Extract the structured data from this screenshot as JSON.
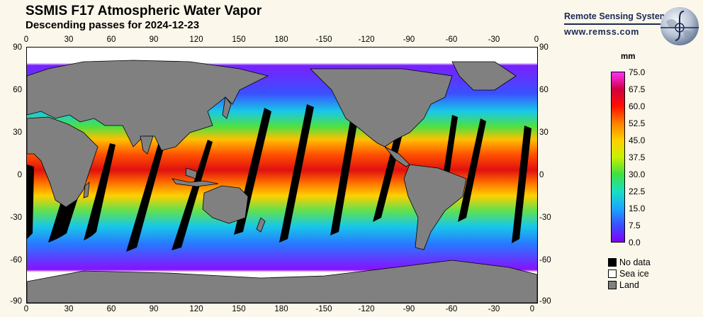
{
  "header": {
    "title": "SSMIS F17 Atmospheric Water Vapor",
    "subtitle": "Descending passes for 2024-12-23"
  },
  "brand": {
    "name": "Remote Sensing Systems",
    "url": "www.remss.com"
  },
  "axes": {
    "longitude_labels": [
      "0",
      "30",
      "60",
      "90",
      "120",
      "150",
      "180",
      "-150",
      "-120",
      "-90",
      "-60",
      "-30",
      "0"
    ],
    "latitude_labels": [
      "90",
      "60",
      "30",
      "0",
      "-30",
      "-60",
      "-90"
    ]
  },
  "colorbar": {
    "unit": "mm",
    "labels": [
      "75.0",
      "67.5",
      "60.0",
      "52.5",
      "45.0",
      "37.5",
      "30.0",
      "22.5",
      "15.0",
      "7.5",
      "0.0"
    ],
    "min": 0,
    "max": 75,
    "stops": [
      "#8000ff",
      "#3a50ff",
      "#1aa8ff",
      "#18e0c0",
      "#40e040",
      "#c8f000",
      "#ffd000",
      "#ff8000",
      "#ff1000",
      "#d00040",
      "#ff30ff"
    ]
  },
  "legend": [
    {
      "label": "No data",
      "color": "#000000"
    },
    {
      "label": "Sea ice",
      "color": "#ffffff"
    },
    {
      "label": "Land",
      "color": "#808080"
    }
  ]
}
